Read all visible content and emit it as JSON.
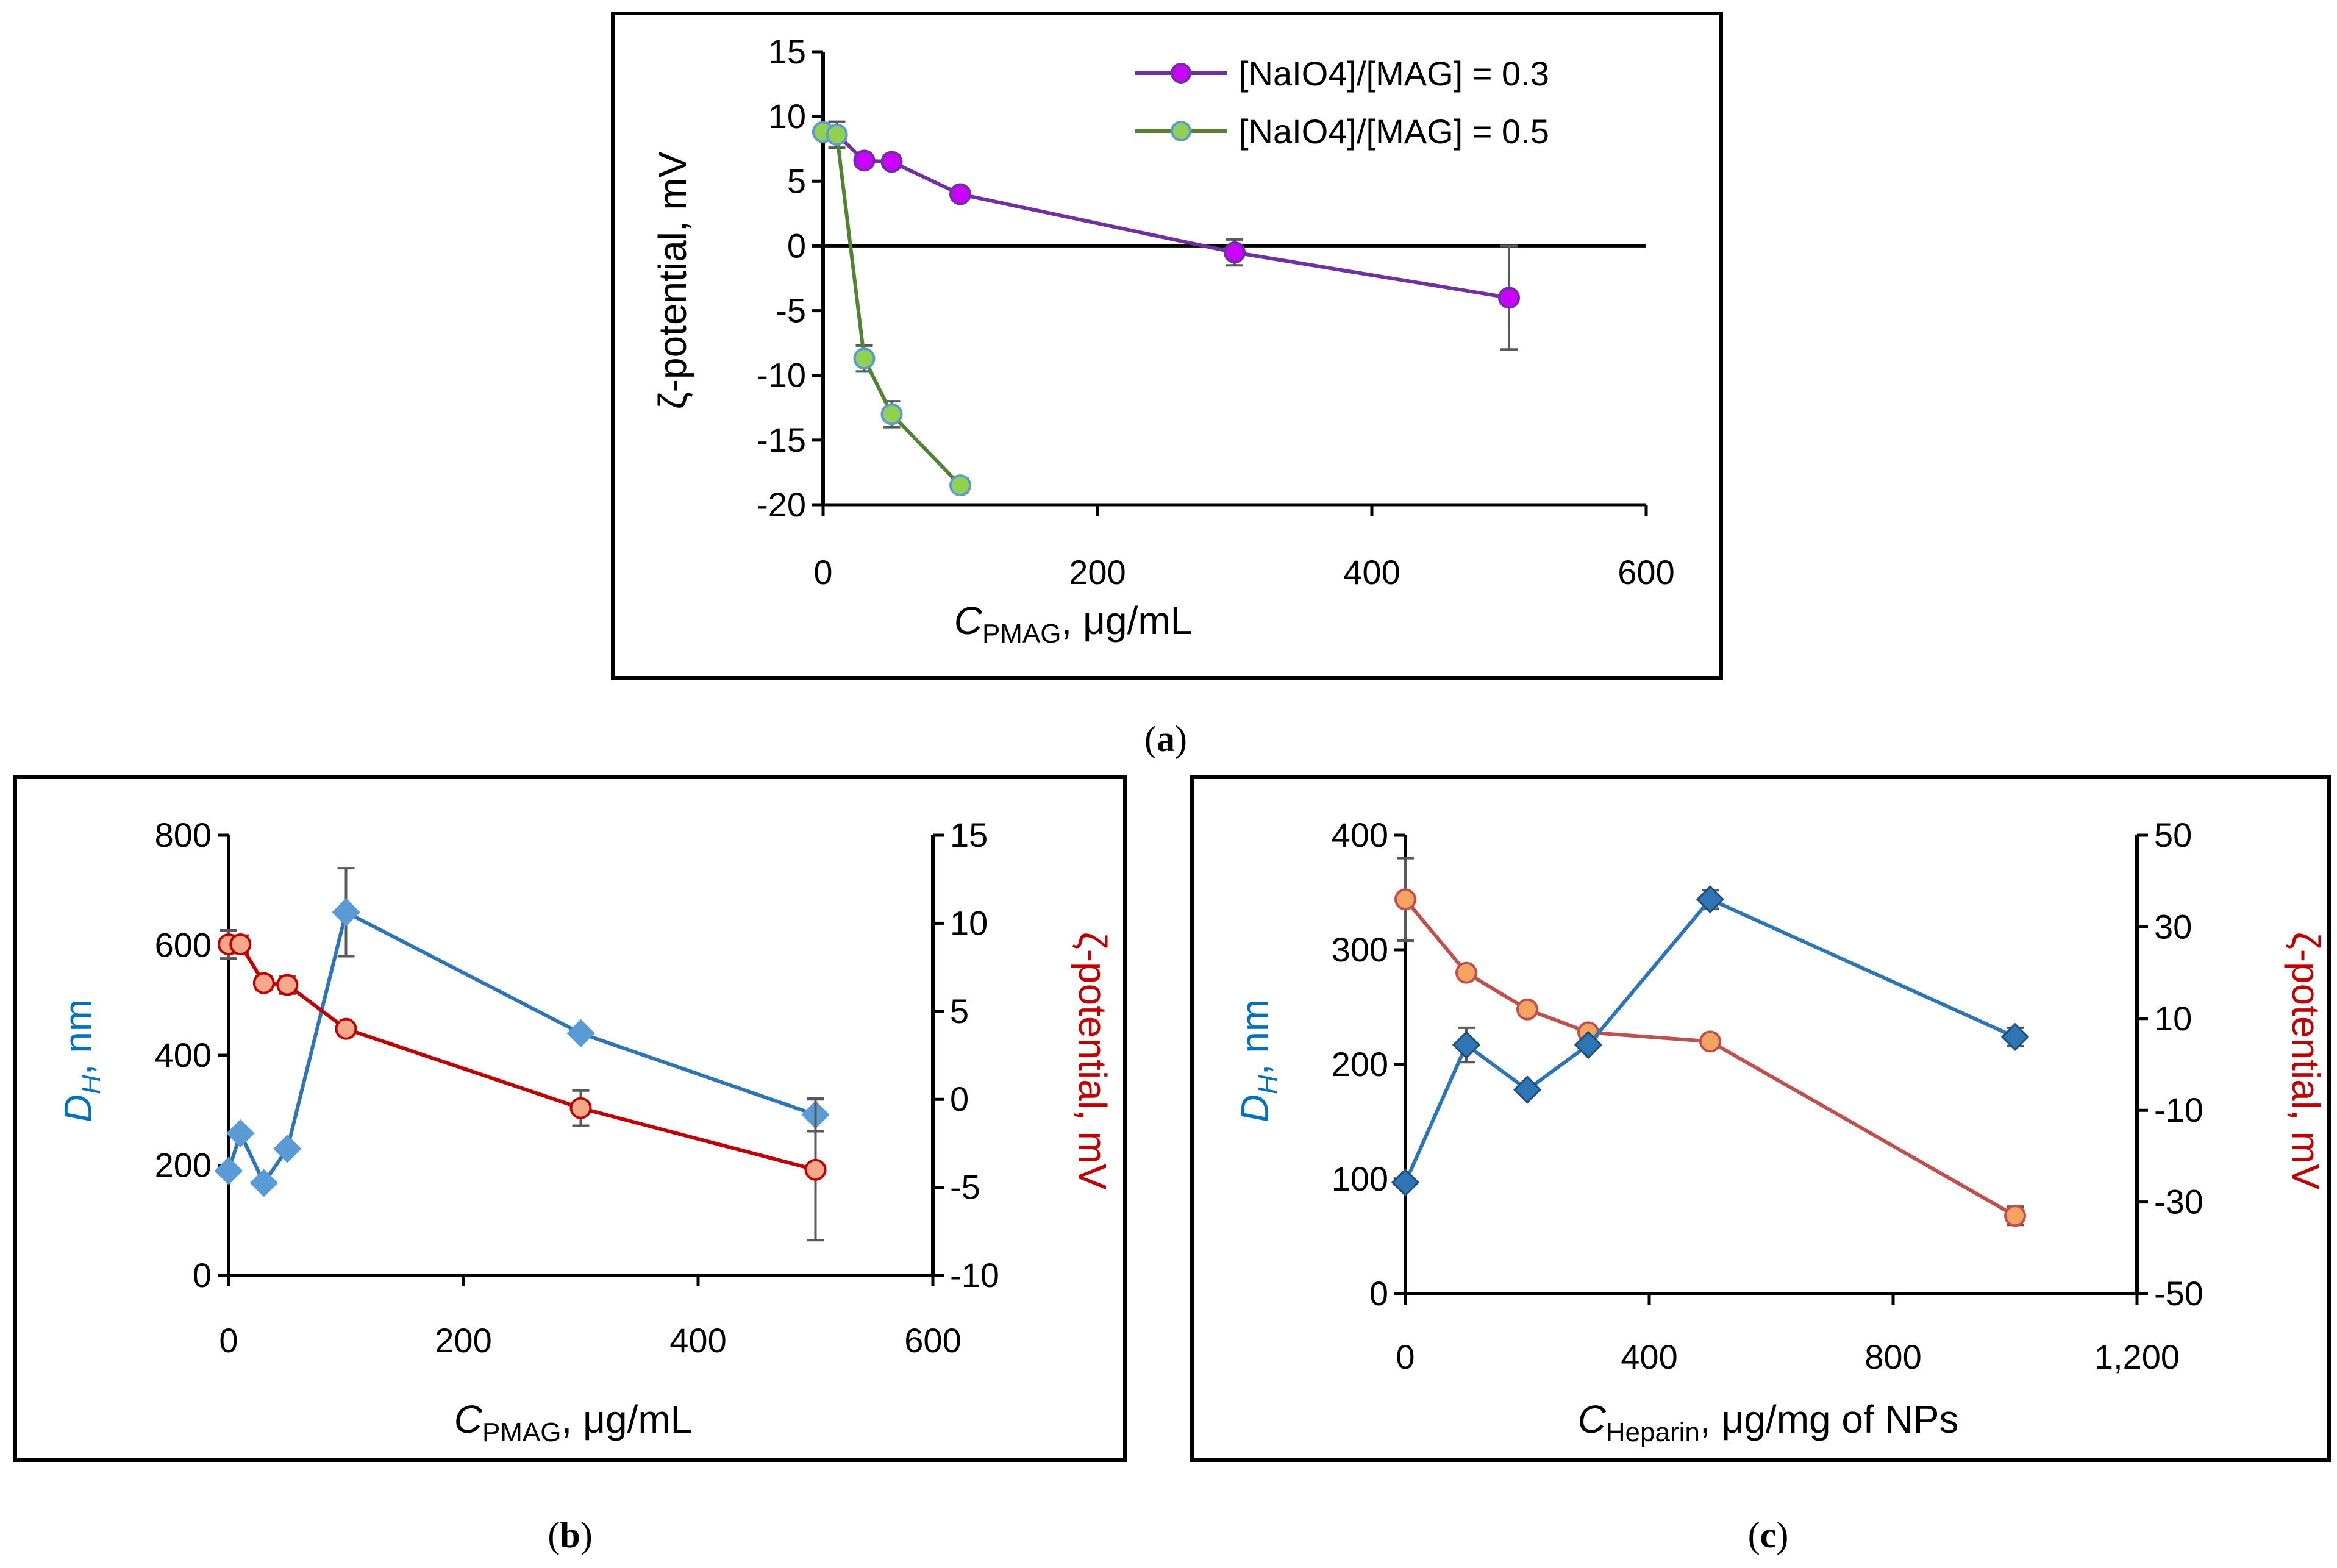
{
  "chart_data": [
    {
      "panel": "a",
      "type": "line",
      "caption": "(a)",
      "xlabel": {
        "symbol": "C",
        "subscript": "PMAG",
        "unit": ", μg/mL"
      },
      "ylabel": "ζ-potential, mV",
      "xlim": [
        0,
        600
      ],
      "ylim": [
        -20,
        15
      ],
      "xticks": [
        0,
        200,
        400,
        600
      ],
      "yticks": [
        -20,
        -15,
        -10,
        -5,
        0,
        5,
        10,
        15
      ],
      "xtick_labels": [
        "0",
        "200",
        "400",
        "600"
      ],
      "ytick_labels": [
        "-20",
        "-15",
        "-10",
        "-5",
        "0",
        "5",
        "10",
        "15"
      ],
      "legend_position": "top-right",
      "series": [
        {
          "name": "[NaIO4]/[MAG] = 0.3",
          "color": "#7030a0",
          "marker": "circle",
          "marker_fill": "#cc00ff",
          "marker_stroke": "#7030a0",
          "x": [
            0,
            10,
            30,
            50,
            100,
            300,
            500
          ],
          "y": [
            8.8,
            8.6,
            6.6,
            6.5,
            4.0,
            -0.5,
            -4.0
          ],
          "err": [
            0.4,
            1.0,
            0.4,
            0.5,
            0.4,
            1.0,
            4.0
          ]
        },
        {
          "name": "[NaIO4]/[MAG] = 0.5",
          "color": "#548235",
          "marker": "circle",
          "marker_fill": "#92d050",
          "marker_stroke": "#5b9bd5",
          "x": [
            0,
            10,
            30,
            50,
            100
          ],
          "y": [
            8.8,
            8.6,
            -8.7,
            -13.0,
            -18.5
          ],
          "err": [
            0.3,
            0.3,
            1.0,
            1.0,
            0.5
          ]
        }
      ]
    },
    {
      "panel": "b",
      "type": "line",
      "caption": "(b)",
      "xlabel": {
        "symbol": "C",
        "subscript": "PMAG",
        "unit": ", μg/mL"
      },
      "ylabel_left": {
        "symbol": "D",
        "subscript": "H",
        "unit": ", nm"
      },
      "ylabel_right": "ζ-potential, mV",
      "xlim": [
        0,
        600
      ],
      "ylim_left": [
        0,
        800
      ],
      "ylim_right": [
        -10,
        15
      ],
      "xticks": [
        0,
        200,
        400,
        600
      ],
      "yticks_left": [
        0,
        200,
        400,
        600,
        800
      ],
      "yticks_right": [
        -10,
        -5,
        0,
        5,
        10,
        15
      ],
      "xtick_labels": [
        "0",
        "200",
        "400",
        "600"
      ],
      "ytick_labels_left": [
        "0",
        "200",
        "400",
        "600",
        "800"
      ],
      "ytick_labels_right": [
        "-10",
        "-5",
        "0",
        "5",
        "10",
        "15"
      ],
      "left_color": "#0070c0",
      "right_color": "#c00000",
      "series": [
        {
          "name": "DH",
          "axis": "left",
          "color": "#2e75b6",
          "marker": "diamond",
          "marker_fill": "#5b9bd5",
          "marker_stroke": "#5b9bd5",
          "x": [
            0,
            10,
            30,
            50,
            100,
            300,
            500
          ],
          "y": [
            190,
            258,
            168,
            230,
            660,
            440,
            292
          ],
          "err": [
            0,
            0,
            0,
            0,
            80,
            0,
            30
          ]
        },
        {
          "name": "ζ-potential",
          "axis": "right",
          "color": "#c00000",
          "marker": "circle",
          "marker_fill": "#f8a88a",
          "marker_stroke": "#c00000",
          "x": [
            0,
            10,
            30,
            50,
            100,
            300,
            500
          ],
          "y": [
            8.8,
            8.8,
            6.6,
            6.5,
            4.0,
            -0.5,
            -4.0
          ],
          "err": [
            0.8,
            0.5,
            0.4,
            0.5,
            0.3,
            1.0,
            4.0
          ]
        }
      ]
    },
    {
      "panel": "c",
      "type": "line",
      "caption": "(c)",
      "xlabel": {
        "symbol": "C",
        "subscript": "Heparin",
        "unit": ", μg/mg of NPs"
      },
      "ylabel_left": {
        "symbol": "D",
        "subscript": "H",
        "unit": ", nm"
      },
      "ylabel_right": "ζ-potential, mV",
      "xlim": [
        0,
        1200
      ],
      "ylim_left": [
        0,
        400
      ],
      "ylim_right": [
        -50,
        50
      ],
      "xticks": [
        0,
        400,
        800,
        1200
      ],
      "yticks_left": [
        0,
        100,
        200,
        300,
        400
      ],
      "yticks_right": [
        -50,
        -30,
        -10,
        10,
        30,
        50
      ],
      "xtick_labels": [
        "0",
        "400",
        "800",
        "1,200"
      ],
      "ytick_labels_left": [
        "0",
        "100",
        "200",
        "300",
        "400"
      ],
      "ytick_labels_right": [
        "-50",
        "-30",
        "-10",
        "10",
        "30",
        "50"
      ],
      "left_color": "#0070c0",
      "right_color": "#c00000",
      "series": [
        {
          "name": "DH",
          "axis": "left",
          "color": "#2e75b6",
          "marker": "diamond",
          "marker_fill": "#2e75b6",
          "marker_stroke": "#1f4e79",
          "x": [
            0,
            100,
            200,
            300,
            500,
            1000
          ],
          "y": [
            97,
            217,
            178,
            217,
            344,
            224
          ],
          "err": [
            0,
            15,
            0,
            0,
            8,
            8
          ]
        },
        {
          "name": "ζ-potential",
          "axis": "right",
          "color": "#c0504d",
          "marker": "circle",
          "marker_fill": "#f4a460",
          "marker_stroke": "#c0504d",
          "x": [
            0,
            100,
            200,
            300,
            500,
            1000
          ],
          "y": [
            36,
            20,
            12,
            7,
            5,
            -33
          ],
          "err": [
            9,
            0,
            0,
            0,
            0,
            2
          ]
        }
      ]
    }
  ]
}
